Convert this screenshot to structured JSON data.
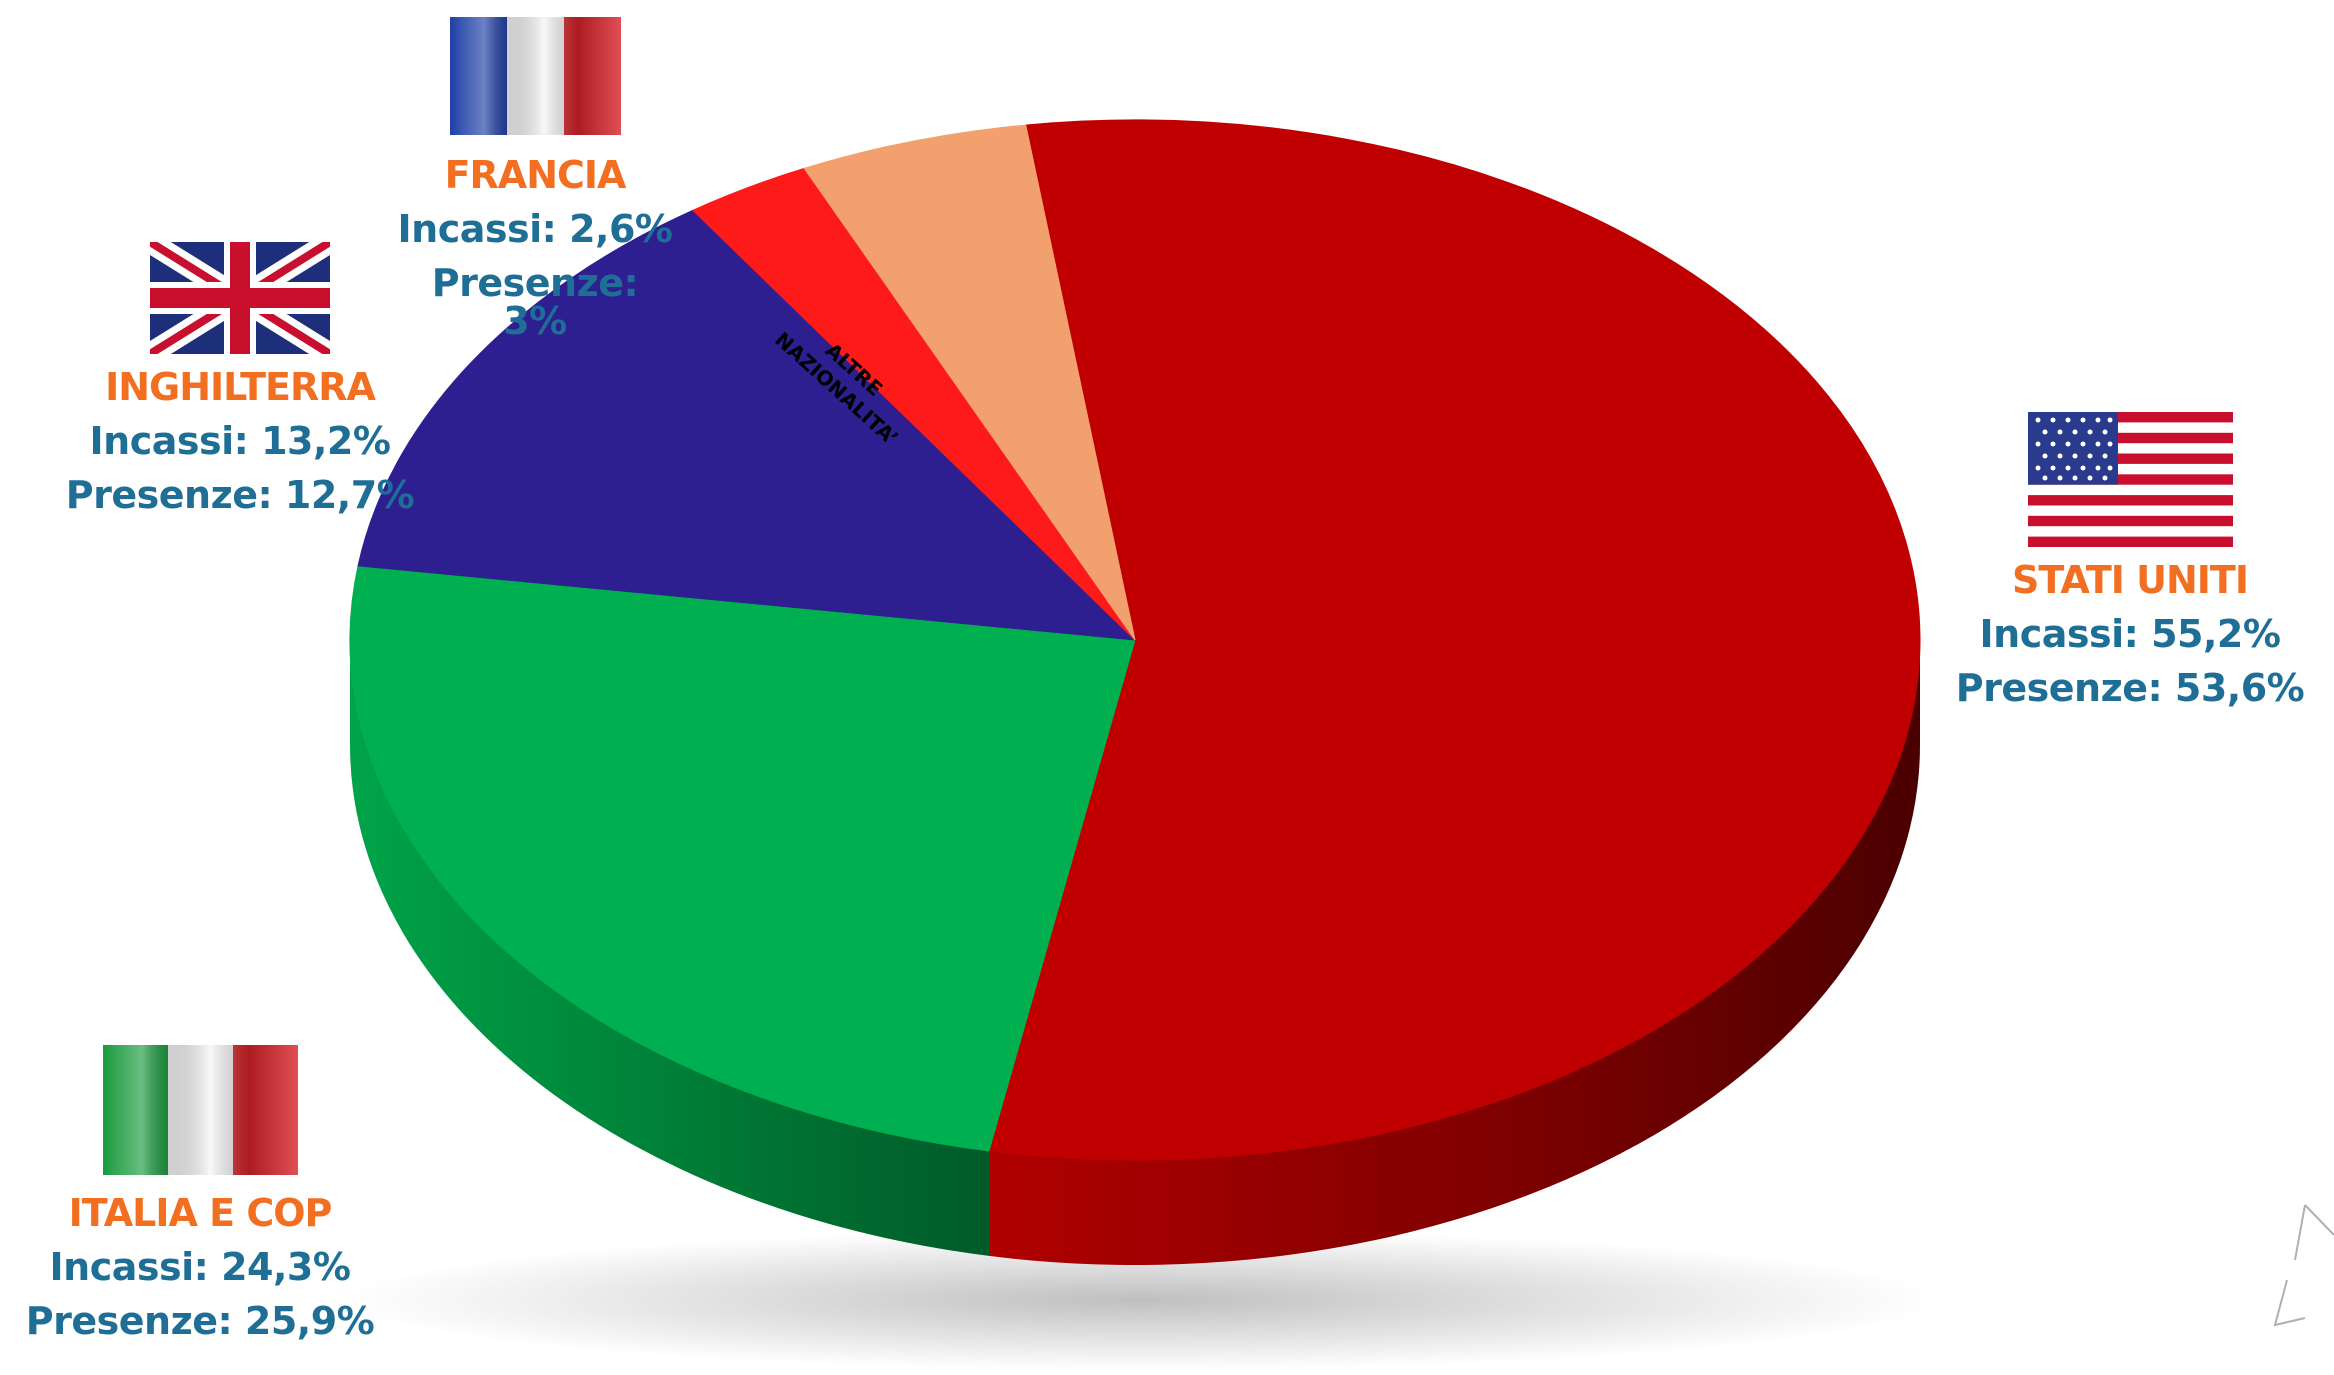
{
  "chart_data": {
    "type": "pie",
    "slices": [
      {
        "key": "usa",
        "label": "STATI UNITI",
        "incassi_label": "Incassi: 55,2%",
        "presenze_label": "Presenze: 53,6%",
        "incassi": 55.2,
        "presenze": 53.6,
        "color": "#c00000",
        "side_color": "#8a0000",
        "flag": "usa-flag-icon"
      },
      {
        "key": "italia",
        "label": "ITALIA E COP",
        "incassi_label": "Incassi: 24,3%",
        "presenze_label": "Presenze: 25,9%",
        "incassi": 24.3,
        "presenze": 25.9,
        "color": "#00b050",
        "side_color": "#007a36",
        "flag": "italy-flag-icon"
      },
      {
        "key": "inghilterra",
        "label": "INGHILTERRA",
        "incassi_label": "Incassi: 13,2%",
        "presenze_label": "Presenze: 12,7%",
        "incassi": 13.2,
        "presenze": 12.7,
        "color": "#2e1f91",
        "side_color": "#1c1360",
        "flag": "uk-flag-icon"
      },
      {
        "key": "francia",
        "label": "FRANCIA",
        "incassi_label": "Incassi: 2,6%",
        "presenze_label": "Presenze: 3%",
        "incassi": 2.6,
        "presenze": 3.0,
        "color": "#ff1a1a",
        "side_color": "#b30000",
        "flag": "france-flag-icon"
      },
      {
        "key": "altre",
        "label": "ALTRE NAZIONALITA’",
        "label_line1": "ALTRE",
        "label_line2": "NAZIONALITA’",
        "incassi": 4.7,
        "color": "#f2a16e",
        "side_color": "#c0764a"
      }
    ],
    "colors": {
      "label_name": "#f26f21",
      "label_value": "#1f6e96"
    }
  }
}
